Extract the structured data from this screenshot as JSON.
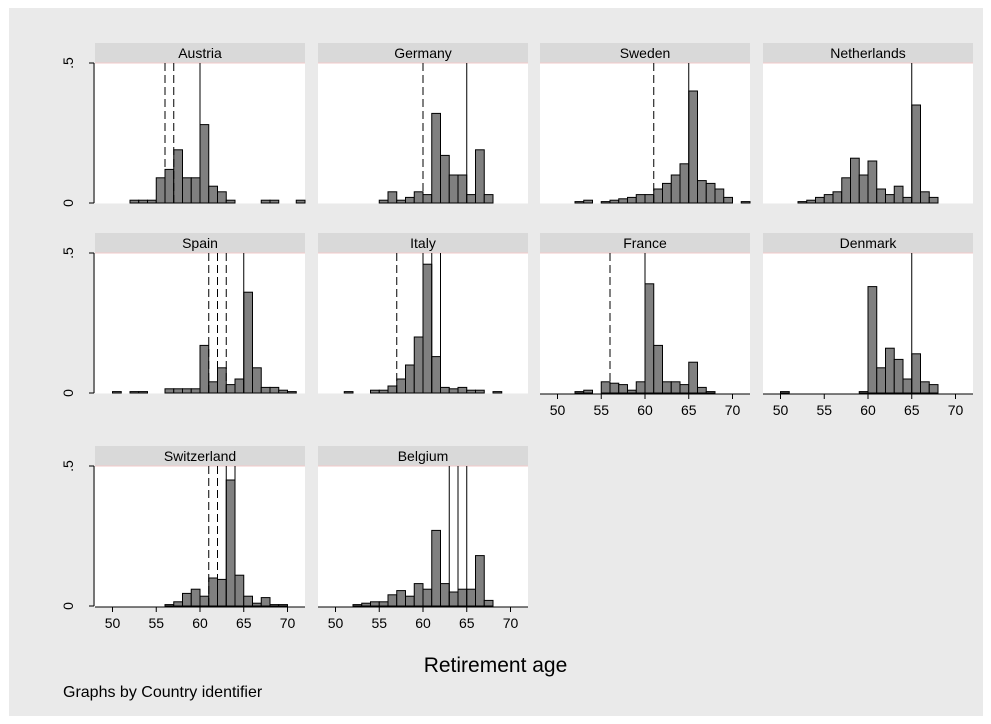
{
  "figure": {
    "xlabel": "Retirement age",
    "note": "Graphs by Country identifier",
    "x_ticks": [
      50,
      55,
      60,
      65,
      70
    ],
    "y_ticks": [
      "0",
      ".5"
    ],
    "colors": {
      "background": "#eaeaea",
      "strip": "#d9d9d9",
      "bar_fill": "#808080",
      "bar_stroke": "#000000",
      "gridline": "#f2c9c9"
    }
  },
  "chart_data": {
    "type": "bar",
    "subtype": "histogram-small-multiples",
    "bin_width": 1,
    "xlim": [
      48,
      72
    ],
    "ylim": [
      0,
      0.5
    ],
    "panels": [
      {
        "name": "Austria",
        "x_start": 52,
        "values": [
          0.01,
          0.01,
          0.01,
          0.09,
          0.12,
          0.19,
          0.09,
          0.09,
          0.28,
          0.06,
          0.04,
          0.01,
          0,
          0,
          0,
          0.01,
          0.01,
          0,
          0,
          0.01
        ],
        "dashed_lines": [
          56,
          57
        ],
        "solid_lines": [
          60
        ]
      },
      {
        "name": "Germany",
        "x_start": 52,
        "values": [
          0,
          0,
          0,
          0.01,
          0.04,
          0.01,
          0.02,
          0.04,
          0.03,
          0.32,
          0.17,
          0.1,
          0.1,
          0.03,
          0.19,
          0.03
        ],
        "dashed_lines": [
          60
        ],
        "solid_lines": [
          65
        ]
      },
      {
        "name": "Sweden",
        "x_start": 52,
        "values": [
          0.005,
          0.01,
          0,
          0.005,
          0.01,
          0.015,
          0.02,
          0.03,
          0.03,
          0.05,
          0.07,
          0.1,
          0.14,
          0.4,
          0.08,
          0.07,
          0.05,
          0.02,
          0,
          0.005
        ],
        "dashed_lines": [
          61
        ],
        "solid_lines": [
          65
        ]
      },
      {
        "name": "Netherlands",
        "x_start": 52,
        "values": [
          0.005,
          0.01,
          0.02,
          0.03,
          0.04,
          0.09,
          0.16,
          0.1,
          0.15,
          0.05,
          0.03,
          0.06,
          0.02,
          0.35,
          0.04,
          0.02
        ],
        "dashed_lines": [],
        "solid_lines": [
          65
        ]
      },
      {
        "name": "Spain",
        "x_start": 50,
        "values": [
          0.005,
          0,
          0.005,
          0.005,
          0,
          0,
          0.015,
          0.015,
          0.015,
          0.015,
          0.17,
          0.04,
          0.09,
          0.03,
          0.05,
          0.36,
          0.09,
          0.02,
          0.02,
          0.01,
          0.005
        ],
        "dashed_lines": [
          61,
          62,
          63
        ],
        "solid_lines": [
          65
        ]
      },
      {
        "name": "Italy",
        "x_start": 51,
        "values": [
          0.005,
          0,
          0,
          0.01,
          0.01,
          0.025,
          0.05,
          0.1,
          0.2,
          0.46,
          0.13,
          0.02,
          0.015,
          0.02,
          0.01,
          0.01,
          0,
          0.005
        ],
        "dashed_lines": [
          57
        ],
        "solid_lines": [
          60,
          61,
          62
        ]
      },
      {
        "name": "France",
        "x_start": 52,
        "values": [
          0.005,
          0.01,
          0,
          0.04,
          0.035,
          0.03,
          0.01,
          0.04,
          0.39,
          0.17,
          0.04,
          0.04,
          0.03,
          0.11,
          0.02,
          0.005
        ],
        "dashed_lines": [
          56
        ],
        "solid_lines": [
          60
        ]
      },
      {
        "name": "Denmark",
        "x_start": 50,
        "values": [
          0.005,
          0,
          0,
          0,
          0,
          0,
          0,
          0,
          0,
          0.005,
          0.38,
          0.09,
          0.16,
          0.12,
          0.05,
          0.14,
          0.04,
          0.03
        ],
        "dashed_lines": [],
        "solid_lines": [
          65
        ]
      },
      {
        "name": "Switzerland",
        "x_start": 56,
        "values": [
          0.005,
          0.015,
          0.045,
          0.06,
          0.035,
          0.1,
          0.095,
          0.45,
          0.11,
          0.035,
          0.01,
          0.03,
          0.005,
          0.005
        ],
        "dashed_lines": [
          61,
          62
        ],
        "solid_lines": [
          63,
          64
        ]
      },
      {
        "name": "Belgium",
        "x_start": 52,
        "values": [
          0.005,
          0.01,
          0.015,
          0.015,
          0.04,
          0.055,
          0.035,
          0.08,
          0.06,
          0.27,
          0.08,
          0.05,
          0.06,
          0.06,
          0.18,
          0.02
        ],
        "dashed_lines": [],
        "solid_lines": [
          63,
          64,
          65
        ]
      }
    ]
  }
}
